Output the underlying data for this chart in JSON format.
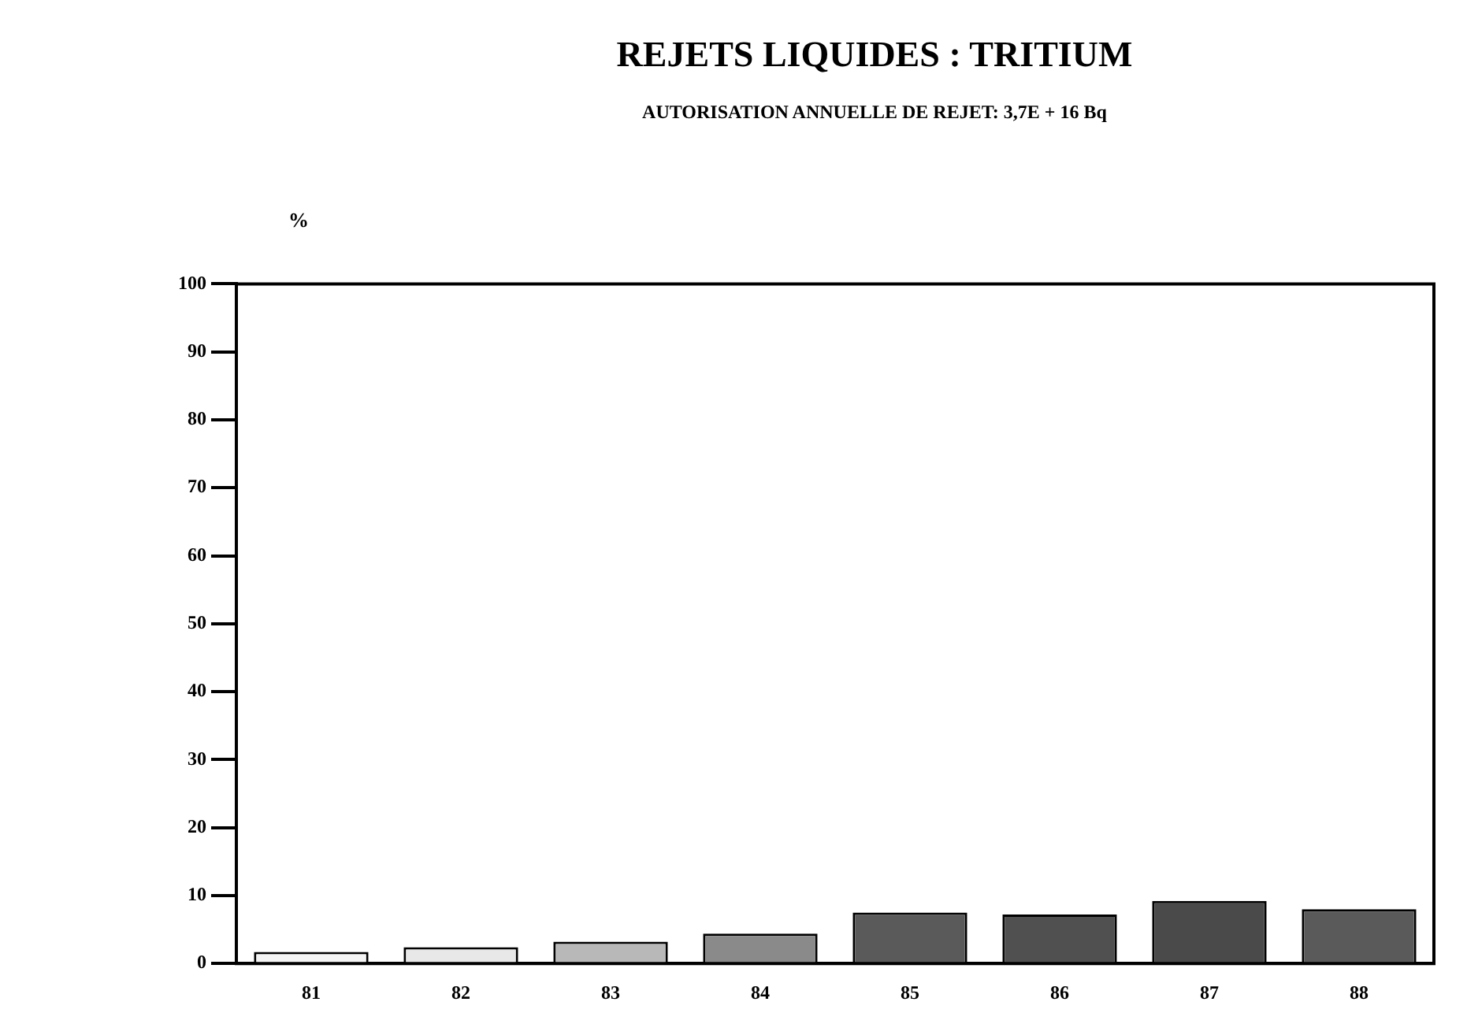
{
  "chart_data": {
    "type": "bar",
    "title": "REJETS LIQUIDES : TRITIUM",
    "subtitle": "AUTORISATION ANNUELLE DE REJET: 3,7E + 16 Bq",
    "ylabel": "%",
    "categories": [
      "81",
      "82",
      "83",
      "84",
      "85",
      "86",
      "87",
      "88"
    ],
    "values": [
      1.7,
      2.4,
      3.2,
      4.4,
      7.5,
      7.2,
      9.2,
      8.0
    ],
    "colors": [
      "#f4f4f4",
      "#e8e8e8",
      "#b8b8b8",
      "#8a8a8a",
      "#5a5a5a",
      "#505050",
      "#4a4a4a",
      "#5a5a5a"
    ],
    "ylim": [
      0,
      100
    ],
    "yticks": [
      0,
      10,
      20,
      30,
      40,
      50,
      60,
      70,
      80,
      90,
      100
    ],
    "grid": false,
    "legend": false
  }
}
